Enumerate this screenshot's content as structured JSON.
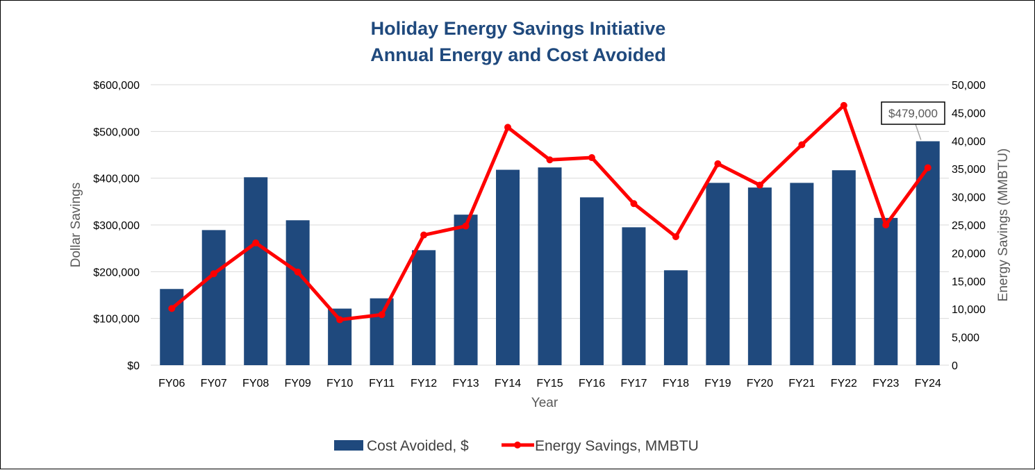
{
  "chart_data": {
    "type": "bar",
    "title": "Holiday Energy Savings Initiative",
    "subtitle": "Annual Energy and Cost Avoided",
    "xlabel": "Year",
    "ylabel": "Dollar Savings",
    "y2label": "Energy Savings (MMBTU)",
    "categories": [
      "FY06",
      "FY07",
      "FY08",
      "FY09",
      "FY10",
      "FY11",
      "FY12",
      "FY13",
      "FY14",
      "FY15",
      "FY16",
      "FY17",
      "FY18",
      "FY19",
      "FY20",
      "FY21",
      "FY22",
      "FY23",
      "FY24"
    ],
    "ylim": [
      0,
      600000
    ],
    "y2lim": [
      0,
      50000
    ],
    "yticks": [
      "$0",
      "$100,000",
      "$200,000",
      "$300,000",
      "$400,000",
      "$500,000",
      "$600,000"
    ],
    "y2ticks": [
      "0",
      "5,000",
      "10,000",
      "15,000",
      "20,000",
      "25,000",
      "30,000",
      "35,000",
      "40,000",
      "45,000",
      "50,000"
    ],
    "grid": true,
    "legend_position": "bottom",
    "series": [
      {
        "name": "Cost Avoided, $",
        "type": "bar",
        "axis": "left",
        "color": "#1F497D",
        "values": [
          163000,
          289000,
          402000,
          310000,
          121000,
          143000,
          246000,
          322000,
          418000,
          423000,
          359000,
          295000,
          203000,
          390000,
          380000,
          390000,
          417000,
          315000,
          479000
        ]
      },
      {
        "name": "Energy Savings, MMBTU",
        "type": "line",
        "axis": "right",
        "color": "#FF0000",
        "values": [
          10100,
          16300,
          21800,
          16600,
          8100,
          9000,
          23200,
          24800,
          42400,
          36600,
          37000,
          28800,
          22900,
          35900,
          32100,
          39300,
          46300,
          25000,
          35200
        ]
      }
    ],
    "annotations": [
      {
        "text": "$479,000",
        "category": "FY24",
        "series": "Cost Avoided, $"
      }
    ]
  }
}
